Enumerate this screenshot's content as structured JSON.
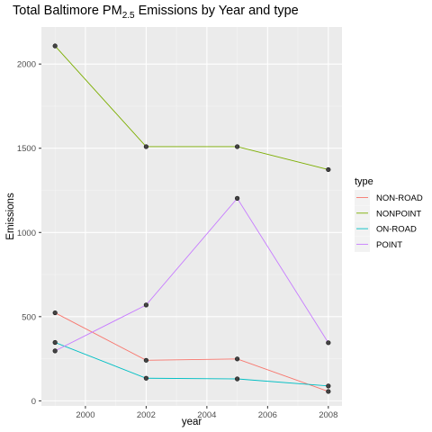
{
  "chart_data": {
    "type": "line",
    "title_main": "Total Baltimore PM",
    "title_sub": "2.5",
    "title_rest": "Emissions by Year and type",
    "xlabel": "year",
    "ylabel": "Emissions",
    "x": [
      1999,
      2002,
      2005,
      2008
    ],
    "xlim": [
      1998.55,
      2008.45
    ],
    "ylim": [
      -30,
      2220
    ],
    "xticks": [
      2000,
      2002,
      2004,
      2006,
      2008
    ],
    "yticks": [
      0,
      500,
      1000,
      1500,
      2000
    ],
    "grid": true,
    "legend_title": "type",
    "legend_position": "right",
    "series": [
      {
        "name": "NON-ROAD",
        "color": "#F8766D",
        "values": [
          522.9,
          240.8,
          248.9,
          55.8
        ]
      },
      {
        "name": "NONPOINT",
        "color": "#7CAE00",
        "values": [
          2107.6,
          1509.5,
          1509.5,
          1373.2
        ]
      },
      {
        "name": "ON-ROAD",
        "color": "#00BFC4",
        "values": [
          346.8,
          134.3,
          130.4,
          88.3
        ]
      },
      {
        "name": "POINT",
        "color": "#C77CFF",
        "values": [
          296.8,
          569.3,
          1202.5,
          344.98
        ]
      }
    ]
  }
}
